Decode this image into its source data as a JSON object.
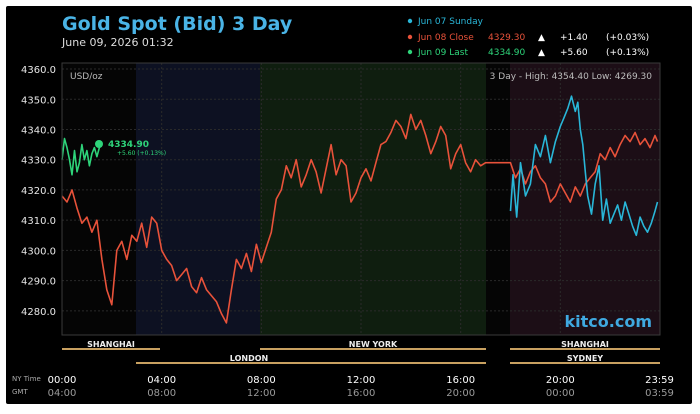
{
  "header": {
    "title": "Gold Spot (Bid) 3 Day",
    "timestamp": "June 09, 2026 01:32"
  },
  "legend": [
    {
      "label": "Jun 07 Sunday",
      "price": "",
      "arrow": "",
      "change": "",
      "pct": "",
      "color": "#29b6d8"
    },
    {
      "label": "Jun 08 Close",
      "price": "4329.30",
      "arrow": "▲",
      "change": "+1.40",
      "pct": "(+0.03%)",
      "color": "#e8523a"
    },
    {
      "label": "Jun 09 Last",
      "price": "4334.90",
      "arrow": "▲",
      "change": "+5.60",
      "pct": "(+0.13%)",
      "color": "#2ed47a"
    }
  ],
  "plot": {
    "unit": "USD/oz",
    "range_text": "3 Day - High: 4354.40  Low: 4269.30",
    "watermark": "kitco.com",
    "last_price_label": "4334.90",
    "last_change_label": "+5.60 (+0.13%)"
  },
  "sessions": {
    "row1": [
      {
        "label": "SHANGHAI"
      },
      {
        "label": "NEW YORK"
      },
      {
        "label": "SHANGHAI"
      }
    ],
    "row2": [
      {
        "label": "LONDON"
      },
      {
        "label": "SYDNEY"
      }
    ]
  },
  "footer": {
    "ny_time_label": "NY Time",
    "gmt_label": "GMT",
    "ny_ticks": [
      "00:00",
      "04:00",
      "08:00",
      "12:00",
      "16:00",
      "20:00",
      "23:59"
    ],
    "gmt_ticks": [
      "04:00",
      "08:00",
      "12:00",
      "16:00",
      "20:00",
      "00:00",
      "03:59"
    ]
  },
  "colors": {
    "background": "#000000",
    "title": "#4ab4e6",
    "sunday": "#29b6d8",
    "close": "#e8523a",
    "last": "#2ed47a",
    "asia_band": "#0d1122",
    "ny_band": "#0f1e0f",
    "evening_band": "#1c0e16",
    "session_bar": "#c8a060"
  },
  "chart_data": {
    "type": "line",
    "title": "Gold Spot (Bid) 3 Day",
    "ylabel": "USD/oz",
    "xlabel": "NY Time",
    "ylim": [
      4270,
      4360
    ],
    "yticks": [
      4280.0,
      4290.0,
      4300.0,
      4310.0,
      4320.0,
      4330.0,
      4340.0,
      4350.0,
      4360.0
    ],
    "xlim": [
      0,
      24
    ],
    "xticks_hours": [
      0,
      4,
      8,
      12,
      16,
      20,
      23.98
    ],
    "xtick_labels": [
      "00:00",
      "04:00",
      "08:00",
      "12:00",
      "16:00",
      "20:00",
      "23:59"
    ],
    "grid": true,
    "legend_position": "top-right",
    "series": [
      {
        "name": "Jun 07 Sunday",
        "color": "#29b6d8",
        "x": [
          18,
          18.1,
          18.25,
          18.4,
          18.6,
          18.8,
          19.0,
          19.2,
          19.4,
          19.6,
          19.8,
          20.0,
          20.15,
          20.3,
          20.45,
          20.6,
          20.7,
          20.8,
          20.9,
          21.0,
          21.1,
          21.25,
          21.4,
          21.55,
          21.7,
          21.85,
          22.0,
          22.15,
          22.3,
          22.45,
          22.6,
          22.75,
          22.9,
          23.05,
          23.2,
          23.35,
          23.5,
          23.65,
          23.8,
          23.9
        ],
        "values": [
          4313,
          4325,
          4311,
          4329,
          4318,
          4322,
          4335,
          4331,
          4338,
          4329,
          4336,
          4341,
          4344,
          4347,
          4351,
          4346,
          4349,
          4340,
          4335,
          4326,
          4318,
          4312,
          4322,
          4328,
          4310,
          4317,
          4309,
          4312,
          4315,
          4310,
          4316,
          4312,
          4308,
          4305,
          4311,
          4308,
          4306,
          4309,
          4313,
          4316
        ]
      },
      {
        "name": "Jun 08 Close",
        "color": "#e8523a",
        "x": [
          0,
          0.2,
          0.4,
          0.6,
          0.8,
          1.0,
          1.2,
          1.4,
          1.6,
          1.8,
          2.0,
          2.2,
          2.4,
          2.6,
          2.8,
          3.0,
          3.2,
          3.4,
          3.6,
          3.8,
          4.0,
          4.2,
          4.4,
          4.6,
          4.8,
          5.0,
          5.2,
          5.4,
          5.6,
          5.8,
          6.0,
          6.2,
          6.4,
          6.6,
          6.8,
          7.0,
          7.2,
          7.4,
          7.6,
          7.8,
          8.0,
          8.2,
          8.4,
          8.6,
          8.8,
          9.0,
          9.2,
          9.4,
          9.6,
          9.8,
          10.0,
          10.2,
          10.4,
          10.6,
          10.8,
          11.0,
          11.2,
          11.4,
          11.6,
          11.8,
          12.0,
          12.2,
          12.4,
          12.6,
          12.8,
          13.0,
          13.2,
          13.4,
          13.6,
          13.8,
          14.0,
          14.2,
          14.4,
          14.6,
          14.8,
          15.0,
          15.2,
          15.4,
          15.6,
          15.8,
          16.0,
          16.2,
          16.4,
          16.6,
          16.8,
          17.0,
          17.5,
          18.0,
          18.2,
          18.4,
          18.6,
          18.8,
          19.0,
          19.2,
          19.4,
          19.6,
          19.8,
          20.0,
          20.2,
          20.4,
          20.6,
          20.8,
          21.0,
          21.2,
          21.4,
          21.6,
          21.8,
          22.0,
          22.2,
          22.4,
          22.6,
          22.8,
          23.0,
          23.2,
          23.4,
          23.6,
          23.8,
          23.9
        ],
        "values": [
          4318,
          4316,
          4320,
          4314,
          4309,
          4311,
          4306,
          4310,
          4297,
          4287,
          4282,
          4300,
          4303,
          4297,
          4305,
          4303,
          4309,
          4301,
          4311,
          4309,
          4300,
          4297,
          4295,
          4290,
          4292,
          4294,
          4288,
          4286,
          4291,
          4287,
          4285,
          4283,
          4279,
          4276,
          4287,
          4297,
          4294,
          4299,
          4293,
          4302,
          4296,
          4301,
          4306,
          4317,
          4320,
          4328,
          4324,
          4330,
          4321,
          4325,
          4330,
          4326,
          4319,
          4327,
          4335,
          4325,
          4330,
          4328,
          4316,
          4319,
          4324,
          4327,
          4323,
          4329,
          4335,
          4336,
          4339,
          4343,
          4341,
          4337,
          4345,
          4340,
          4343,
          4338,
          4332,
          4336,
          4341,
          4338,
          4327,
          4332,
          4335,
          4329,
          4326,
          4330,
          4328,
          4329,
          4329,
          4329,
          4324,
          4327,
          4322,
          4326,
          4328,
          4324,
          4322,
          4316,
          4318,
          4322,
          4319,
          4316,
          4321,
          4318,
          4322,
          4324,
          4326,
          4332,
          4330,
          4334,
          4331,
          4335,
          4338,
          4336,
          4339,
          4335,
          4337,
          4334,
          4338,
          4336
        ]
      },
      {
        "name": "Jun 09 Last",
        "color": "#2ed47a",
        "x": [
          0,
          0.1,
          0.2,
          0.3,
          0.4,
          0.5,
          0.6,
          0.7,
          0.8,
          0.9,
          1.0,
          1.1,
          1.2,
          1.3,
          1.4,
          1.53
        ],
        "values": [
          4330,
          4337,
          4334,
          4330,
          4325,
          4333,
          4326,
          4329,
          4335,
          4330,
          4333,
          4328,
          4332,
          4334,
          4331,
          4334.9
        ]
      }
    ]
  }
}
